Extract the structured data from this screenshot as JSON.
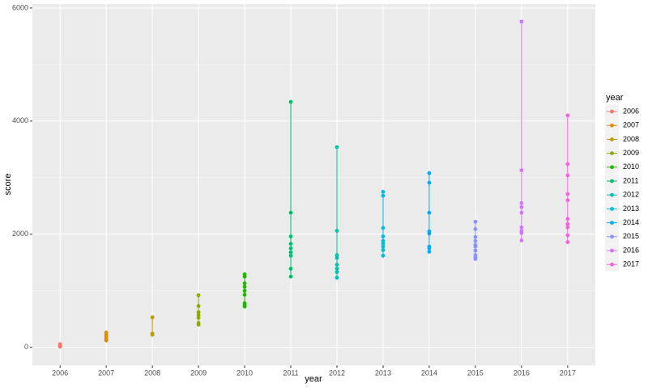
{
  "chart_data": {
    "type": "line",
    "x_label": "year",
    "y_label": "score",
    "legend_title": "year",
    "xlim": [
      2005.4,
      2017.6
    ],
    "xticks": [
      2006,
      2007,
      2008,
      2009,
      2010,
      2011,
      2012,
      2013,
      2014,
      2015,
      2016,
      2017
    ],
    "ylim": [
      -320,
      6070
    ],
    "yticks": [
      0,
      2000,
      4000,
      6000
    ],
    "grid": true,
    "legend": "right",
    "series": [
      {
        "name": "2006",
        "color": "#F8766D",
        "x": [
          2006,
          2006,
          2006
        ],
        "values": [
          10,
          30,
          55
        ]
      },
      {
        "name": "2007",
        "color": "#E18A00",
        "x": [
          2007,
          2007,
          2007,
          2007,
          2007
        ],
        "values": [
          120,
          150,
          180,
          220,
          260
        ]
      },
      {
        "name": "2008",
        "color": "#BE9C00",
        "x": [
          2008,
          2008,
          2008
        ],
        "values": [
          220,
          240,
          530
        ]
      },
      {
        "name": "2009",
        "color": "#8CAB00",
        "x": [
          2009,
          2009,
          2009,
          2009,
          2009,
          2009,
          2009
        ],
        "values": [
          400,
          430,
          520,
          570,
          620,
          730,
          920
        ]
      },
      {
        "name": "2010",
        "color": "#24B700",
        "x": [
          2010,
          2010,
          2010,
          2010,
          2010,
          2010,
          2010,
          2010,
          2010
        ],
        "values": [
          720,
          750,
          780,
          930,
          1000,
          1070,
          1130,
          1250,
          1290
        ]
      },
      {
        "name": "2011",
        "color": "#00BE70",
        "x": [
          2011,
          2011,
          2011,
          2011,
          2011,
          2011,
          2011,
          2011,
          2011
        ],
        "values": [
          1250,
          1390,
          1620,
          1680,
          1750,
          1830,
          1960,
          2380,
          4340
        ]
      },
      {
        "name": "2012",
        "color": "#00C1AB",
        "x": [
          2012,
          2012,
          2012,
          2012,
          2012,
          2012,
          2012,
          2012
        ],
        "values": [
          1230,
          1330,
          1390,
          1460,
          1580,
          1630,
          2060,
          3540
        ]
      },
      {
        "name": "2013",
        "color": "#00BBDA",
        "x": [
          2013,
          2013,
          2013,
          2013,
          2013,
          2013,
          2013,
          2013,
          2013
        ],
        "values": [
          1620,
          1720,
          1780,
          1830,
          1880,
          1960,
          2110,
          2680,
          2750
        ]
      },
      {
        "name": "2014",
        "color": "#00ACFC",
        "x": [
          2014,
          2014,
          2014,
          2014,
          2014,
          2014,
          2014,
          2014
        ],
        "values": [
          1690,
          1750,
          1780,
          2010,
          2050,
          2380,
          2910,
          3080
        ]
      },
      {
        "name": "2015",
        "color": "#8B93FF",
        "x": [
          2015,
          2015,
          2015,
          2015,
          2015,
          2015,
          2015,
          2015,
          2015,
          2015
        ],
        "values": [
          1560,
          1590,
          1630,
          1710,
          1780,
          1810,
          1880,
          1950,
          2090,
          2220
        ]
      },
      {
        "name": "2016",
        "color": "#D575FE",
        "x": [
          2016,
          2016,
          2016,
          2016,
          2016,
          2016,
          2016,
          2016,
          2016
        ],
        "values": [
          1890,
          2020,
          2060,
          2120,
          2380,
          2480,
          2550,
          3130,
          5760
        ]
      },
      {
        "name": "2017",
        "color": "#F962DD",
        "x": [
          2017,
          2017,
          2017,
          2017,
          2017,
          2017,
          2017,
          2017,
          2017,
          2017
        ],
        "values": [
          1860,
          1980,
          2120,
          2180,
          2270,
          2600,
          2710,
          3040,
          3240,
          4100
        ]
      }
    ]
  }
}
